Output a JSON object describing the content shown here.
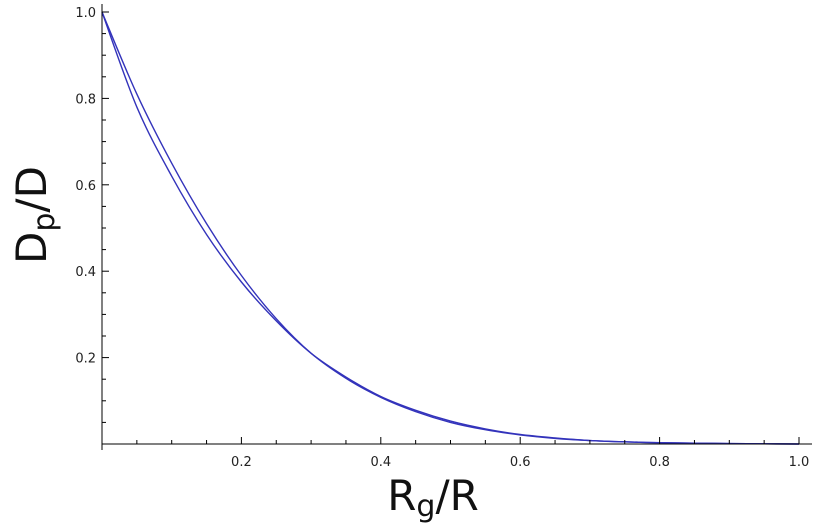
{
  "chart_data": {
    "type": "line",
    "title": "",
    "xlabel": {
      "main": "R",
      "sub": "g",
      "rest": "/R"
    },
    "ylabel": {
      "main": "D",
      "sub": "p",
      "rest": "/D"
    },
    "xlim": [
      0,
      1.0
    ],
    "ylim": [
      0,
      1.0
    ],
    "grid": false,
    "legend": "none",
    "line_color": "#3333bb",
    "x_ticks": [
      0.2,
      0.4,
      0.6,
      0.8,
      1.0
    ],
    "x_tick_labels": [
      "0.2",
      "0.4",
      "0.6",
      "0.8",
      "1.0"
    ],
    "y_ticks": [
      0.2,
      0.4,
      0.6,
      0.8,
      1.0
    ],
    "y_tick_labels": [
      "0.2",
      "0.4",
      "0.6",
      "0.8",
      "1.0"
    ],
    "series": [
      {
        "x": [
          0,
          0.05,
          0.1,
          0.15,
          0.2,
          0.25,
          0.3,
          0.35,
          0.4,
          0.45,
          0.5,
          0.55,
          0.6,
          0.65,
          0.7,
          0.75,
          0.8,
          0.85,
          0.9,
          0.95,
          1.0
        ],
        "y": [
          1.0,
          0.78,
          0.62,
          0.485,
          0.375,
          0.285,
          0.21,
          0.155,
          0.11,
          0.078,
          0.053,
          0.035,
          0.022,
          0.014,
          0.008,
          0.005,
          0.003,
          0.002,
          0.001,
          0.0005,
          0.0
        ]
      },
      {
        "x": [
          0,
          0.05,
          0.1,
          0.15,
          0.2,
          0.25,
          0.3,
          0.35,
          0.4,
          0.45,
          0.5,
          0.55,
          0.6,
          0.65,
          0.7,
          0.75,
          0.8,
          0.85,
          0.9,
          0.95,
          1.0
        ],
        "y": [
          1.0,
          0.81,
          0.65,
          0.51,
          0.39,
          0.29,
          0.21,
          0.152,
          0.108,
          0.075,
          0.05,
          0.033,
          0.021,
          0.013,
          0.008,
          0.005,
          0.003,
          0.002,
          0.001,
          0.0005,
          0.0
        ]
      }
    ]
  }
}
